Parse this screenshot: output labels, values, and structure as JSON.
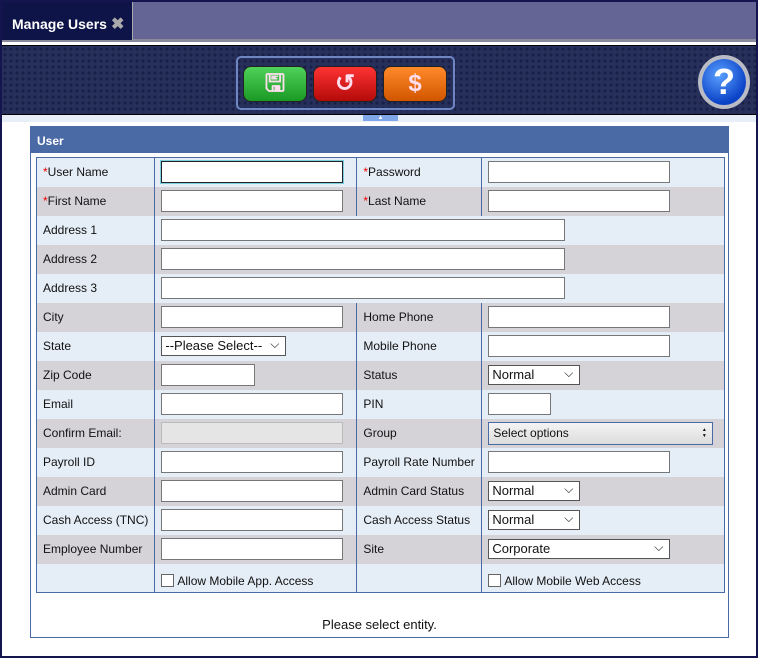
{
  "tab": {
    "title": "Manage Users",
    "close_icon": "close-icon"
  },
  "toolbar": {
    "save": "save-icon",
    "undo": "undo-icon",
    "cash": "dollar-icon",
    "help": "help-icon"
  },
  "panel": {
    "title": "User",
    "status": "Please select entity."
  },
  "rows": [
    {
      "left": {
        "label": "User Name",
        "required": true,
        "type": "text",
        "value": ""
      },
      "right": {
        "label": "Password",
        "required": true,
        "type": "text",
        "value": ""
      }
    },
    {
      "left": {
        "label": "First Name",
        "required": true,
        "type": "text",
        "value": ""
      },
      "right": {
        "label": "Last Name",
        "required": true,
        "type": "text",
        "value": ""
      }
    },
    {
      "left": {
        "label": "Address 1",
        "type": "text",
        "value": ""
      },
      "full": true
    },
    {
      "left": {
        "label": "Address 2",
        "type": "text",
        "value": ""
      },
      "full": true
    },
    {
      "left": {
        "label": "Address 3",
        "type": "text",
        "value": ""
      },
      "full": true
    },
    {
      "left": {
        "label": "City",
        "type": "text",
        "value": ""
      },
      "right": {
        "label": "Home Phone",
        "type": "text",
        "value": ""
      }
    },
    {
      "left": {
        "label": "State",
        "type": "select",
        "value": "--Please Select--"
      },
      "right": {
        "label": "Mobile Phone",
        "type": "text",
        "value": ""
      }
    },
    {
      "left": {
        "label": "Zip Code",
        "type": "text",
        "value": ""
      },
      "right": {
        "label": "Status",
        "type": "select",
        "value": "Normal"
      }
    },
    {
      "left": {
        "label": "Email",
        "type": "text",
        "value": ""
      },
      "right": {
        "label": "PIN",
        "type": "text",
        "value": ""
      }
    },
    {
      "left": {
        "label": "Confirm Email:",
        "type": "disabled",
        "value": ""
      },
      "right": {
        "label": "Group",
        "type": "multiselect",
        "value": "Select options"
      }
    },
    {
      "left": {
        "label": "Payroll ID",
        "type": "text",
        "value": ""
      },
      "right": {
        "label": "Payroll Rate Number",
        "type": "text",
        "value": ""
      }
    },
    {
      "left": {
        "label": "Admin Card",
        "type": "text",
        "value": ""
      },
      "right": {
        "label": "Admin Card Status",
        "type": "select",
        "value": "Normal"
      }
    },
    {
      "left": {
        "label": "Cash Access (TNC)",
        "type": "text",
        "value": ""
      },
      "right": {
        "label": "Cash Access Status",
        "type": "select",
        "value": "Normal"
      }
    },
    {
      "left": {
        "label": "Employee Number",
        "type": "text",
        "value": ""
      },
      "right": {
        "label": "Site",
        "type": "select",
        "value": "Corporate"
      }
    },
    {
      "left": {
        "label": "",
        "type": "checkbox",
        "value": "Allow Mobile App. Access",
        "checked": false
      },
      "right": {
        "label": "",
        "type": "checkbox",
        "value": "Allow Mobile Web Access",
        "checked": false
      }
    }
  ]
}
